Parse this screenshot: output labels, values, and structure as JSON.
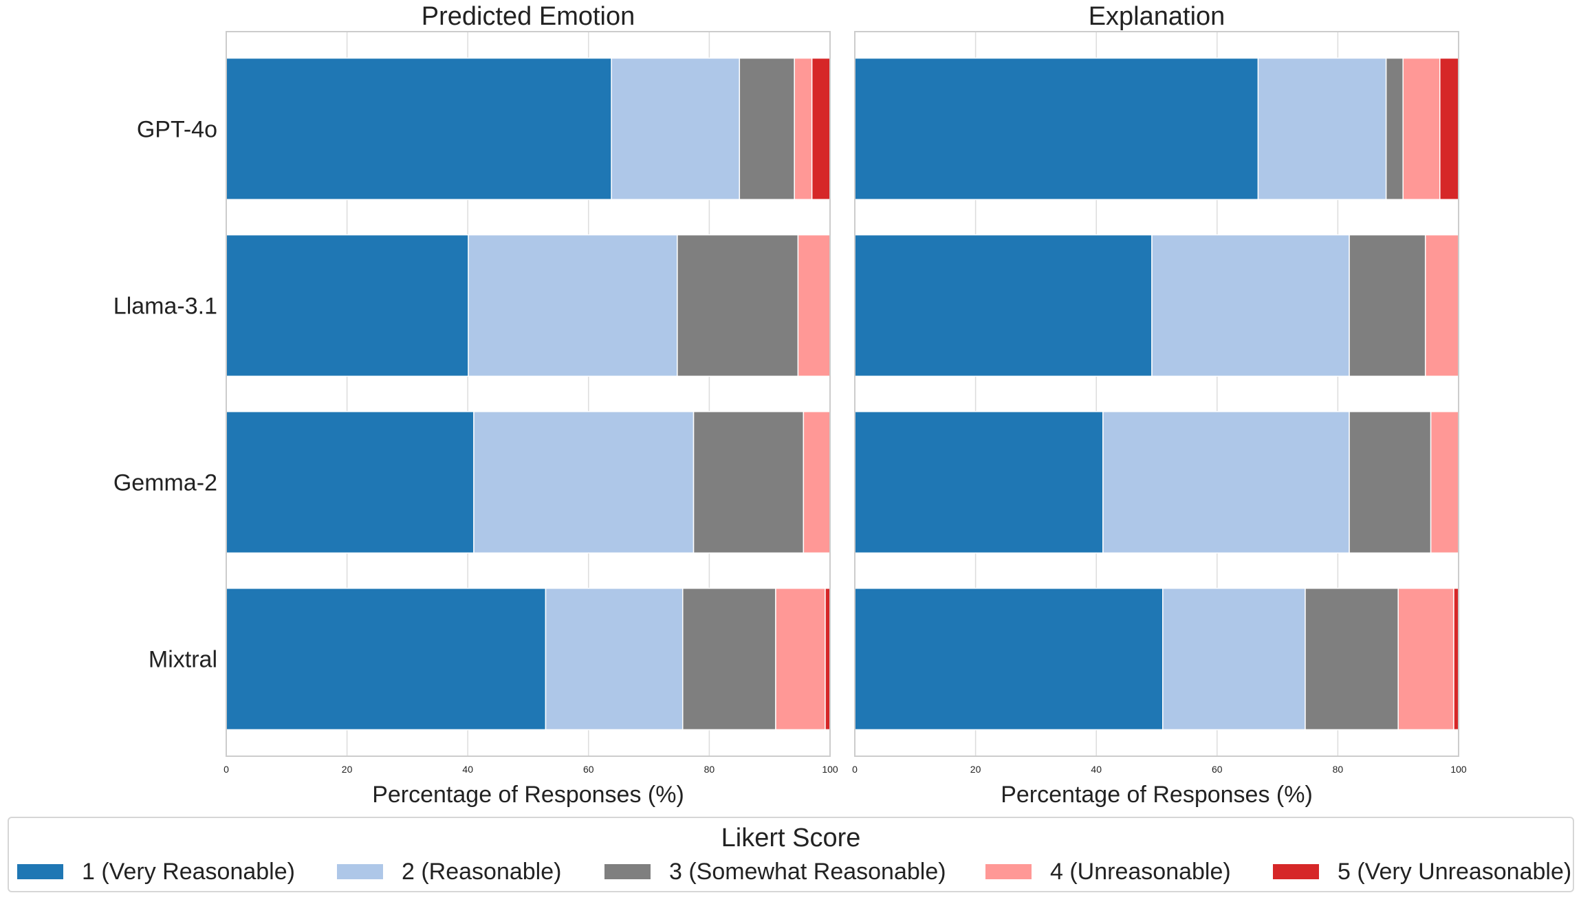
{
  "chart_data": [
    {
      "type": "bar",
      "orientation": "horizontal",
      "stacked": true,
      "title": "Predicted Emotion",
      "xlabel": "Percentage of Responses (%)",
      "ylabel": "",
      "xlim": [
        0,
        100
      ],
      "xticks": [
        0,
        20,
        40,
        60,
        80,
        100
      ],
      "grid": true,
      "categories": [
        "GPT-4o",
        "Llama-3.1",
        "Gemma-2",
        "Mixtral"
      ],
      "series": [
        {
          "name": "1 (Very Reasonable)",
          "values": [
            63.8,
            40.1,
            41.0,
            52.9
          ]
        },
        {
          "name": "2 (Reasonable)",
          "values": [
            21.2,
            34.6,
            36.4,
            22.7
          ]
        },
        {
          "name": "3 (Somewhat Reasonable)",
          "values": [
            9.1,
            20.0,
            18.2,
            15.4
          ]
        },
        {
          "name": "4 (Unreasonable)",
          "values": [
            2.9,
            5.3,
            4.4,
            8.2
          ]
        },
        {
          "name": "5 (Very Unreasonable)",
          "values": [
            3.0,
            0.0,
            0.0,
            0.8
          ]
        }
      ]
    },
    {
      "type": "bar",
      "orientation": "horizontal",
      "stacked": true,
      "title": "Explanation",
      "xlabel": "Percentage of Responses (%)",
      "ylabel": "",
      "xlim": [
        0,
        100
      ],
      "xticks": [
        0,
        20,
        40,
        60,
        80,
        100
      ],
      "grid": true,
      "categories": [
        "GPT-4o",
        "Llama-3.1",
        "Gemma-2",
        "Mixtral"
      ],
      "series": [
        {
          "name": "1 (Very Reasonable)",
          "values": [
            66.8,
            49.2,
            41.1,
            51.0
          ]
        },
        {
          "name": "2 (Reasonable)",
          "values": [
            21.2,
            32.7,
            40.8,
            23.6
          ]
        },
        {
          "name": "3 (Somewhat Reasonable)",
          "values": [
            2.8,
            12.6,
            13.5,
            15.4
          ]
        },
        {
          "name": "4 (Unreasonable)",
          "values": [
            6.1,
            5.5,
            4.6,
            9.2
          ]
        },
        {
          "name": "5 (Very Unreasonable)",
          "values": [
            3.1,
            0.0,
            0.0,
            0.8
          ]
        }
      ]
    }
  ],
  "colors": [
    "#1f77b4",
    "#aec7e8",
    "#7f7f7f",
    "#ff9896",
    "#d62728"
  ],
  "legend": {
    "title": "Likert Score",
    "placement": "bottom",
    "items": [
      "1 (Very Reasonable)",
      "2 (Reasonable)",
      "3 (Somewhat Reasonable)",
      "4 (Unreasonable)",
      "5 (Very Unreasonable)"
    ]
  }
}
